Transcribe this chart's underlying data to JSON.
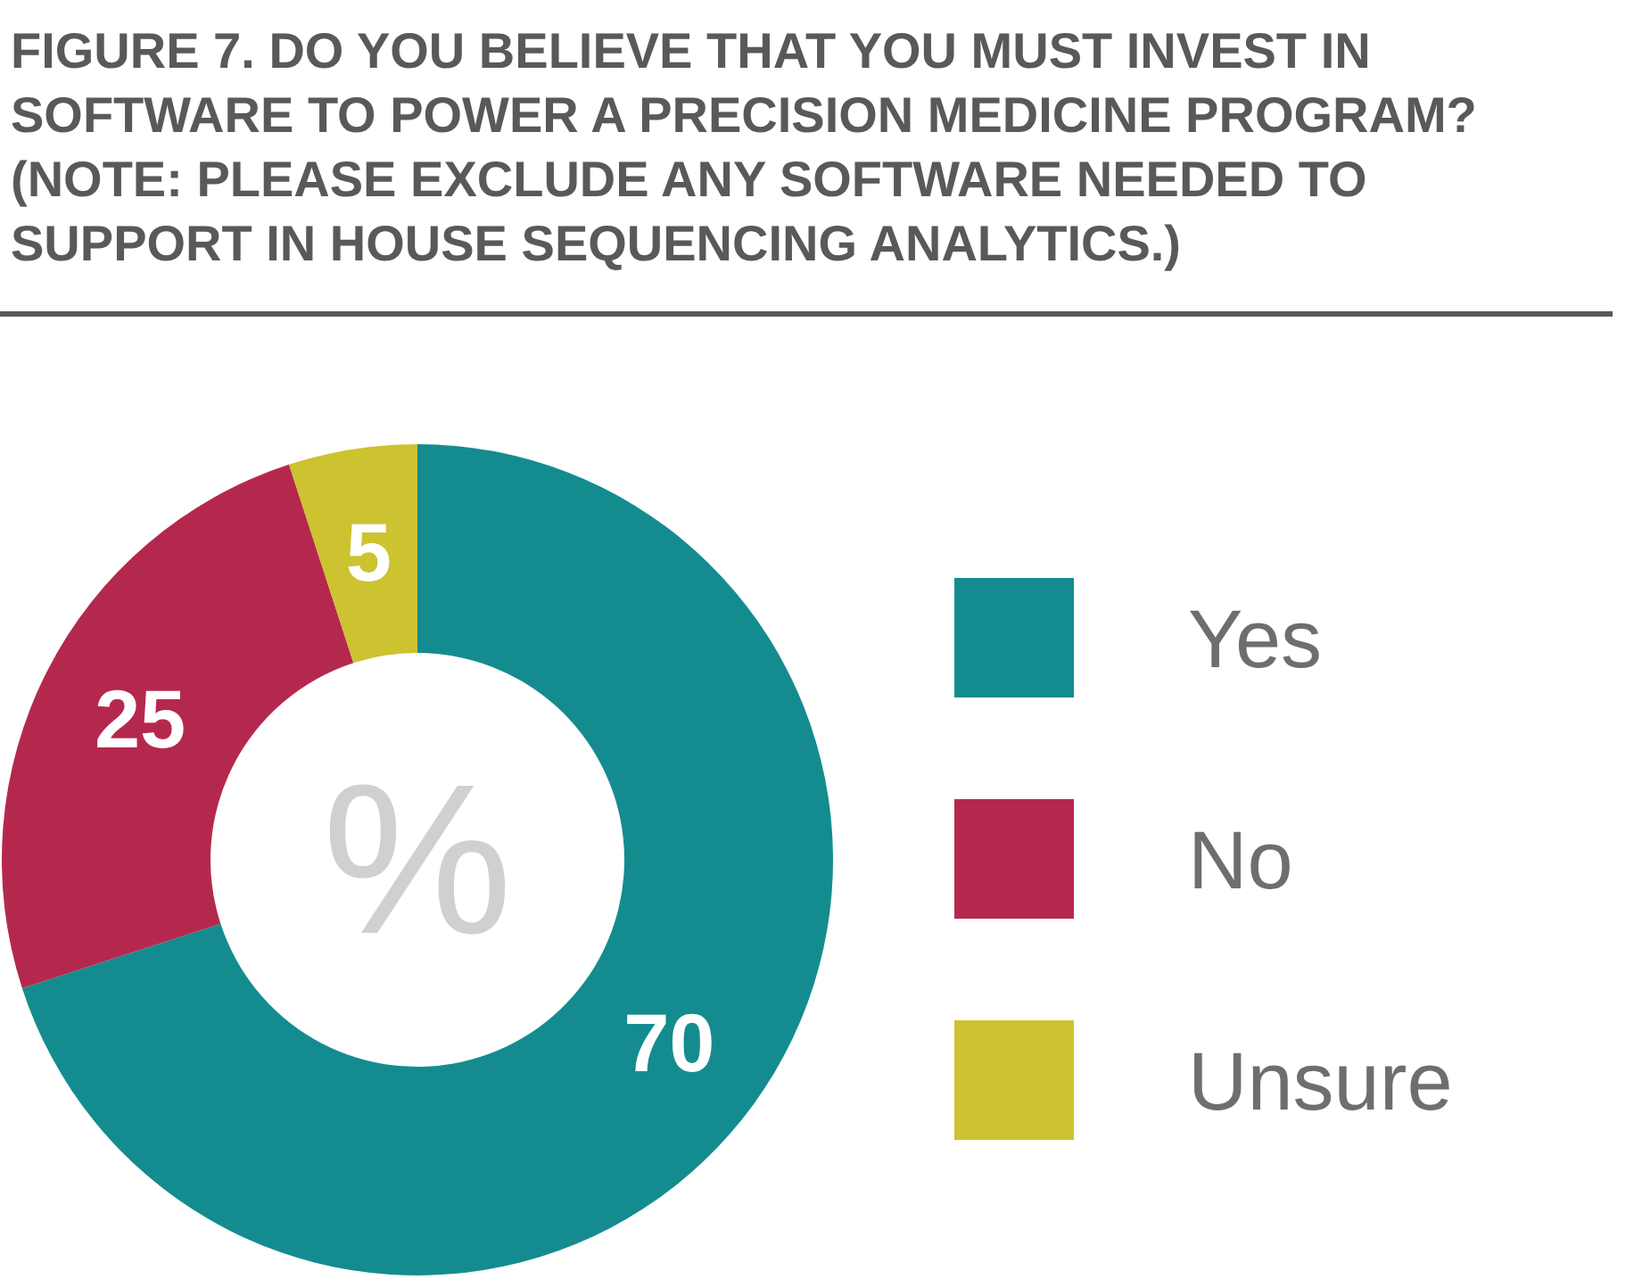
{
  "chart_data": {
    "type": "donut",
    "title": "FIGURE 7. DO YOU BELIEVE THAT YOU MUST INVEST IN SOFTWARE TO POWER A PRECISION MEDICINE PROGRAM? (NOTE: PLEASE EXCLUDE ANY SOFTWARE NEEDED TO SUPPORT IN HOUSE SEQUENCING ANALYTICS.)",
    "categories": [
      "Yes",
      "No",
      "Unsure"
    ],
    "values": [
      70,
      25,
      5
    ],
    "colors": [
      "#148c8f",
      "#b5284e",
      "#cdc22f"
    ],
    "data_labels": true,
    "legend": "right",
    "annotations": [
      "%"
    ]
  }
}
